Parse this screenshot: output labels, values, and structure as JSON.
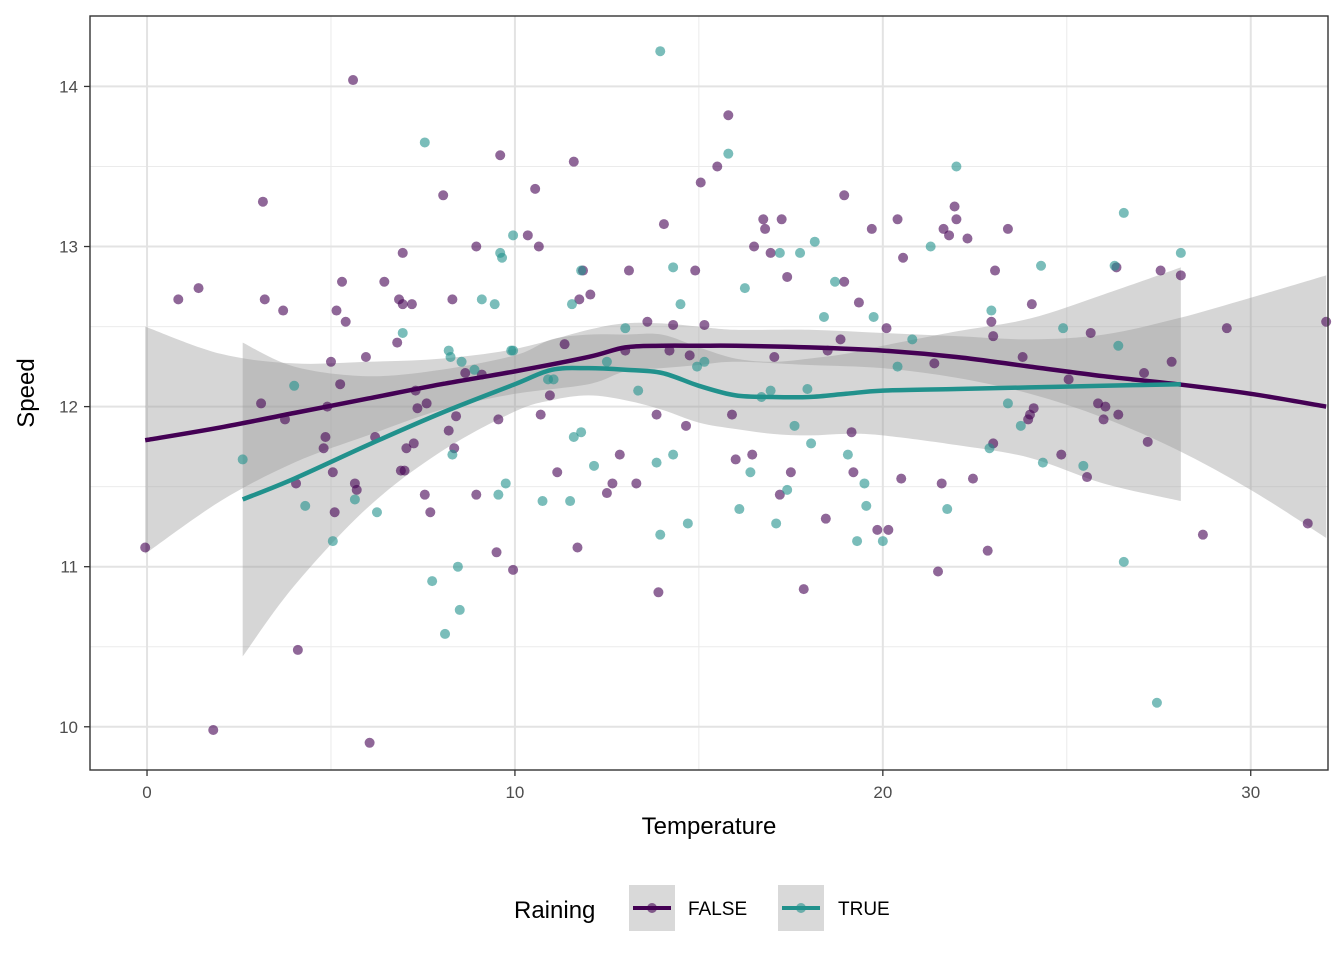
{
  "chart_data": {
    "type": "scatter",
    "title": "",
    "xlabel": "Temperature",
    "ylabel": "Speed",
    "xlim": [
      -1.55,
      32.1
    ],
    "ylim": [
      9.73,
      14.44
    ],
    "x_ticks": [
      0,
      10,
      20,
      30
    ],
    "y_ticks": [
      10,
      11,
      12,
      13,
      14
    ],
    "grid": true,
    "legend": {
      "title": "Raining",
      "position": "bottom"
    },
    "series": [
      {
        "name": "FALSE",
        "color": "#440154",
        "line_color": "#440154",
        "points": [
          [
            -0.05,
            11.12
          ],
          [
            0.85,
            12.67
          ],
          [
            1.4,
            12.74
          ],
          [
            1.8,
            9.98
          ],
          [
            3.1,
            12.02
          ],
          [
            3.15,
            13.28
          ],
          [
            3.2,
            12.67
          ],
          [
            3.7,
            12.6
          ],
          [
            3.75,
            11.92
          ],
          [
            4.05,
            11.52
          ],
          [
            4.1,
            10.48
          ],
          [
            4.8,
            11.74
          ],
          [
            4.85,
            11.81
          ],
          [
            4.9,
            12.0
          ],
          [
            5.0,
            12.28
          ],
          [
            5.05,
            11.59
          ],
          [
            5.1,
            11.34
          ],
          [
            5.15,
            12.6
          ],
          [
            5.25,
            12.14
          ],
          [
            5.3,
            12.78
          ],
          [
            5.4,
            12.53
          ],
          [
            5.6,
            14.04
          ],
          [
            5.65,
            11.52
          ],
          [
            5.7,
            11.48
          ],
          [
            5.95,
            12.31
          ],
          [
            6.05,
            9.9
          ],
          [
            6.2,
            11.81
          ],
          [
            6.45,
            12.78
          ],
          [
            6.8,
            12.4
          ],
          [
            6.85,
            12.67
          ],
          [
            6.9,
            11.6
          ],
          [
            6.95,
            12.96
          ],
          [
            6.95,
            12.64
          ],
          [
            7.0,
            11.6
          ],
          [
            7.05,
            11.74
          ],
          [
            7.2,
            12.64
          ],
          [
            7.25,
            11.77
          ],
          [
            7.3,
            12.1
          ],
          [
            7.35,
            11.99
          ],
          [
            7.55,
            11.45
          ],
          [
            7.6,
            12.02
          ],
          [
            7.7,
            11.34
          ],
          [
            8.05,
            13.32
          ],
          [
            8.2,
            11.85
          ],
          [
            8.3,
            12.67
          ],
          [
            8.35,
            11.74
          ],
          [
            8.4,
            11.94
          ],
          [
            8.65,
            12.21
          ],
          [
            8.95,
            11.45
          ],
          [
            8.95,
            13.0
          ],
          [
            9.1,
            12.2
          ],
          [
            9.5,
            11.09
          ],
          [
            9.55,
            11.92
          ],
          [
            9.6,
            13.57
          ],
          [
            9.95,
            10.98
          ],
          [
            10.35,
            13.07
          ],
          [
            10.55,
            13.36
          ],
          [
            10.65,
            13.0
          ],
          [
            10.7,
            11.95
          ],
          [
            10.95,
            12.07
          ],
          [
            11.15,
            11.59
          ],
          [
            11.35,
            12.39
          ],
          [
            11.6,
            13.53
          ],
          [
            11.7,
            11.12
          ],
          [
            11.75,
            12.67
          ],
          [
            11.85,
            12.85
          ],
          [
            12.05,
            12.7
          ],
          [
            12.5,
            11.46
          ],
          [
            12.65,
            11.52
          ],
          [
            12.85,
            11.7
          ],
          [
            13.0,
            12.35
          ],
          [
            13.1,
            12.85
          ],
          [
            13.3,
            11.52
          ],
          [
            13.6,
            12.53
          ],
          [
            13.85,
            11.95
          ],
          [
            13.9,
            10.84
          ],
          [
            14.05,
            13.14
          ],
          [
            14.2,
            12.35
          ],
          [
            14.3,
            12.51
          ],
          [
            14.65,
            11.88
          ],
          [
            14.75,
            12.32
          ],
          [
            14.9,
            12.85
          ],
          [
            15.05,
            13.4
          ],
          [
            15.15,
            12.51
          ],
          [
            15.5,
            13.5
          ],
          [
            15.8,
            13.82
          ],
          [
            15.9,
            11.95
          ],
          [
            16.0,
            11.67
          ],
          [
            16.45,
            11.7
          ],
          [
            16.5,
            13.0
          ],
          [
            16.75,
            13.17
          ],
          [
            16.8,
            13.11
          ],
          [
            16.95,
            12.96
          ],
          [
            17.05,
            12.31
          ],
          [
            17.2,
            11.45
          ],
          [
            17.25,
            13.17
          ],
          [
            17.4,
            12.81
          ],
          [
            17.5,
            11.59
          ],
          [
            17.85,
            10.86
          ],
          [
            18.45,
            11.3
          ],
          [
            18.5,
            12.35
          ],
          [
            18.85,
            12.42
          ],
          [
            18.95,
            13.32
          ],
          [
            18.95,
            12.78
          ],
          [
            19.15,
            11.84
          ],
          [
            19.2,
            11.59
          ],
          [
            19.35,
            12.65
          ],
          [
            19.7,
            13.11
          ],
          [
            19.85,
            11.23
          ],
          [
            20.1,
            12.49
          ],
          [
            20.15,
            11.23
          ],
          [
            20.4,
            13.17
          ],
          [
            20.5,
            11.55
          ],
          [
            20.55,
            12.93
          ],
          [
            21.4,
            12.27
          ],
          [
            21.5,
            10.97
          ],
          [
            21.6,
            11.52
          ],
          [
            21.65,
            13.11
          ],
          [
            21.8,
            13.07
          ],
          [
            21.95,
            13.25
          ],
          [
            22.0,
            13.17
          ],
          [
            22.3,
            13.05
          ],
          [
            22.45,
            11.55
          ],
          [
            22.85,
            11.1
          ],
          [
            22.95,
            12.53
          ],
          [
            23.0,
            11.77
          ],
          [
            23.0,
            12.44
          ],
          [
            23.05,
            12.85
          ],
          [
            23.4,
            13.11
          ],
          [
            23.8,
            12.31
          ],
          [
            23.95,
            11.92
          ],
          [
            24.0,
            11.95
          ],
          [
            24.05,
            12.64
          ],
          [
            24.1,
            11.99
          ],
          [
            24.85,
            11.7
          ],
          [
            25.05,
            12.17
          ],
          [
            25.55,
            11.56
          ],
          [
            25.65,
            12.46
          ],
          [
            25.85,
            12.02
          ],
          [
            26.0,
            11.92
          ],
          [
            26.05,
            12.0
          ],
          [
            26.35,
            12.87
          ],
          [
            26.4,
            11.95
          ],
          [
            27.1,
            12.21
          ],
          [
            27.2,
            11.78
          ],
          [
            27.55,
            12.85
          ],
          [
            27.85,
            12.28
          ],
          [
            28.1,
            12.82
          ],
          [
            28.7,
            11.2
          ],
          [
            29.35,
            12.49
          ],
          [
            31.55,
            11.27
          ],
          [
            32.05,
            12.53
          ]
        ],
        "trend_x": [
          -0.05,
          2,
          4,
          6,
          8,
          10,
          12,
          13,
          14,
          15,
          16,
          18,
          20,
          22,
          24,
          26,
          28,
          30,
          32.05
        ],
        "trend_y": [
          11.79,
          11.87,
          11.96,
          12.05,
          12.14,
          12.22,
          12.31,
          12.37,
          12.38,
          12.38,
          12.38,
          12.37,
          12.35,
          12.31,
          12.25,
          12.19,
          12.14,
          12.08,
          12.0
        ],
        "band_upper": [
          12.5,
          12.33,
          12.27,
          12.28,
          12.3,
          12.36,
          12.48,
          12.52,
          12.52,
          12.5,
          12.48,
          12.48,
          12.46,
          12.44,
          12.42,
          12.45,
          12.55,
          12.68,
          12.82
        ],
        "band_lower": [
          11.08,
          11.41,
          11.65,
          11.82,
          11.98,
          12.08,
          12.14,
          12.22,
          12.24,
          12.26,
          12.28,
          12.26,
          12.24,
          12.18,
          12.08,
          11.93,
          11.73,
          11.48,
          11.18
        ]
      },
      {
        "name": "TRUE",
        "color": "#21918c",
        "line_color": "#21918c",
        "points": [
          [
            2.6,
            11.67
          ],
          [
            4.0,
            12.13
          ],
          [
            4.3,
            11.38
          ],
          [
            5.05,
            11.16
          ],
          [
            5.65,
            11.42
          ],
          [
            6.25,
            11.34
          ],
          [
            6.95,
            12.46
          ],
          [
            7.55,
            13.65
          ],
          [
            7.75,
            10.91
          ],
          [
            8.1,
            10.58
          ],
          [
            8.2,
            12.35
          ],
          [
            8.25,
            12.31
          ],
          [
            8.3,
            11.7
          ],
          [
            8.45,
            11.0
          ],
          [
            8.5,
            10.73
          ],
          [
            8.55,
            12.28
          ],
          [
            8.9,
            12.23
          ],
          [
            9.1,
            12.67
          ],
          [
            9.45,
            12.64
          ],
          [
            9.55,
            11.45
          ],
          [
            9.6,
            12.96
          ],
          [
            9.65,
            12.93
          ],
          [
            9.75,
            11.52
          ],
          [
            9.9,
            12.35
          ],
          [
            9.95,
            12.35
          ],
          [
            9.95,
            13.07
          ],
          [
            10.75,
            11.41
          ],
          [
            10.9,
            12.17
          ],
          [
            11.05,
            12.17
          ],
          [
            11.5,
            11.41
          ],
          [
            11.55,
            12.64
          ],
          [
            11.6,
            11.81
          ],
          [
            11.8,
            12.85
          ],
          [
            11.8,
            11.84
          ],
          [
            12.15,
            11.63
          ],
          [
            12.5,
            12.28
          ],
          [
            13.0,
            12.49
          ],
          [
            13.35,
            12.1
          ],
          [
            13.85,
            11.65
          ],
          [
            13.95,
            11.2
          ],
          [
            13.95,
            14.22
          ],
          [
            14.3,
            11.7
          ],
          [
            14.3,
            12.87
          ],
          [
            14.5,
            12.64
          ],
          [
            14.7,
            11.27
          ],
          [
            14.95,
            12.25
          ],
          [
            15.15,
            12.28
          ],
          [
            15.8,
            13.58
          ],
          [
            16.1,
            11.36
          ],
          [
            16.25,
            12.74
          ],
          [
            16.4,
            11.59
          ],
          [
            16.7,
            12.06
          ],
          [
            16.95,
            12.1
          ],
          [
            17.1,
            11.27
          ],
          [
            17.2,
            12.96
          ],
          [
            17.4,
            11.48
          ],
          [
            17.6,
            11.88
          ],
          [
            17.75,
            12.96
          ],
          [
            17.95,
            12.11
          ],
          [
            18.05,
            11.77
          ],
          [
            18.15,
            13.03
          ],
          [
            18.4,
            12.56
          ],
          [
            18.7,
            12.78
          ],
          [
            19.05,
            11.7
          ],
          [
            19.3,
            11.16
          ],
          [
            19.5,
            11.52
          ],
          [
            19.55,
            11.38
          ],
          [
            19.75,
            12.56
          ],
          [
            20.0,
            11.16
          ],
          [
            20.4,
            12.25
          ],
          [
            20.8,
            12.42
          ],
          [
            21.3,
            13.0
          ],
          [
            21.75,
            11.36
          ],
          [
            22.0,
            13.5
          ],
          [
            22.9,
            11.74
          ],
          [
            22.95,
            12.6
          ],
          [
            23.4,
            12.02
          ],
          [
            23.75,
            11.88
          ],
          [
            24.3,
            12.88
          ],
          [
            24.35,
            11.65
          ],
          [
            24.9,
            12.49
          ],
          [
            25.45,
            11.63
          ],
          [
            26.3,
            12.88
          ],
          [
            26.4,
            12.38
          ],
          [
            26.55,
            13.21
          ],
          [
            26.55,
            11.03
          ],
          [
            27.45,
            10.15
          ],
          [
            28.1,
            12.96
          ]
        ],
        "trend_x": [
          2.6,
          4,
          6,
          8,
          10,
          11,
          12,
          13,
          14,
          15,
          16,
          17,
          18,
          19,
          20,
          22,
          24,
          26,
          28.1
        ],
        "trend_y": [
          11.42,
          11.55,
          11.76,
          11.96,
          12.14,
          12.23,
          12.24,
          12.23,
          12.21,
          12.13,
          12.07,
          12.06,
          12.06,
          12.08,
          12.1,
          12.11,
          12.12,
          12.13,
          12.14
        ],
        "band_upper": [
          12.4,
          12.25,
          12.19,
          12.23,
          12.32,
          12.42,
          12.45,
          12.45,
          12.45,
          12.37,
          12.3,
          12.28,
          12.3,
          12.33,
          12.38,
          12.47,
          12.55,
          12.7,
          12.87
        ],
        "band_lower": [
          10.44,
          10.88,
          11.37,
          11.72,
          11.97,
          12.04,
          12.07,
          12.04,
          11.98,
          11.9,
          11.86,
          11.83,
          11.82,
          11.83,
          11.82,
          11.76,
          11.68,
          11.52,
          11.41
        ]
      }
    ]
  }
}
